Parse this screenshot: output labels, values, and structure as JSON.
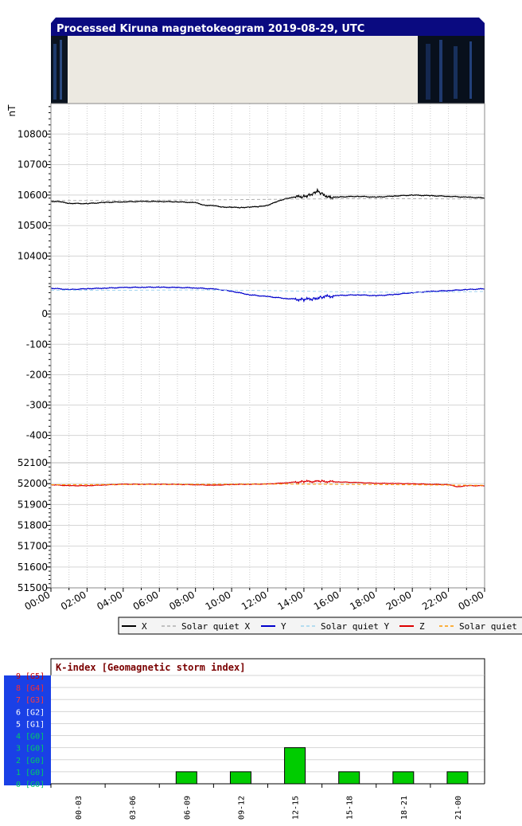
{
  "title": "Processed Kiruna magnetokeogram 2019-08-29, UTC",
  "colors": {
    "title_bg": "#0a0a80",
    "X": "#000000",
    "Y": "#0000cc",
    "Z": "#dd0000",
    "solar_quiet_X": "#b0b0b0",
    "solar_quiet_Y": "#9fd3ef",
    "solar_quiet_Z": "#ff9900",
    "k_bar": "#00cc00"
  },
  "chart_data": [
    {
      "type": "line",
      "name": "X panel",
      "ylabel": "nT",
      "x_ticks": [
        "00:00",
        "02:00",
        "04:00",
        "06:00",
        "08:00",
        "10:00",
        "12:00",
        "14:00",
        "16:00",
        "18:00",
        "20:00",
        "22:00",
        "00:00"
      ],
      "xlim_hours": [
        0,
        24
      ],
      "y_ticks": [
        "10800",
        "10700",
        "10600",
        "10500",
        "10400"
      ],
      "ylim": [
        10310,
        10900
      ],
      "series": [
        {
          "name": "X",
          "x_hours": [
            0,
            0.5,
            1,
            2,
            3,
            4,
            5,
            6,
            7,
            8,
            8.5,
            9,
            9.5,
            10,
            10.5,
            11,
            11.5,
            12,
            12.5,
            13,
            13.5,
            14,
            14.25,
            14.5,
            14.75,
            15,
            15.5,
            16,
            17,
            18,
            19,
            20,
            21,
            22,
            23,
            24
          ],
          "values": [
            10580,
            10578,
            10573,
            10572,
            10576,
            10578,
            10579,
            10579,
            10578,
            10575,
            10567,
            10565,
            10561,
            10560,
            10559,
            10561,
            10562,
            10567,
            10578,
            10589,
            10593,
            10596,
            10600,
            10606,
            10614,
            10604,
            10591,
            10594,
            10596,
            10593,
            10597,
            10600,
            10598,
            10596,
            10593,
            10591
          ]
        },
        {
          "name": "Solar quiet X",
          "x_hours": [
            0,
            4,
            8,
            12,
            16,
            20,
            24
          ],
          "values": [
            10582,
            10582,
            10584,
            10586,
            10588,
            10588,
            10587
          ]
        }
      ]
    },
    {
      "type": "line",
      "name": "Y panel",
      "y_ticks": [
        "0",
        "-100",
        "-200",
        "-300",
        "-400"
      ],
      "ylim": [
        -490,
        100
      ],
      "series": [
        {
          "name": "Y",
          "x_hours": [
            0,
            1,
            2,
            3,
            4,
            5,
            6,
            7,
            8,
            9,
            10,
            11,
            12,
            13,
            14,
            14.5,
            15,
            16,
            17,
            18,
            19,
            20,
            21,
            22,
            23,
            24
          ],
          "values": [
            85,
            80,
            83,
            85,
            87,
            88,
            88,
            87,
            86,
            82,
            75,
            63,
            57,
            51,
            47,
            50,
            56,
            61,
            63,
            60,
            64,
            70,
            74,
            77,
            80,
            83
          ]
        },
        {
          "name": "Solar quiet Y",
          "x_hours": [
            0,
            4,
            8,
            12,
            16,
            20,
            24
          ],
          "values": [
            78,
            78,
            79,
            77,
            73,
            71,
            74
          ]
        }
      ]
    },
    {
      "type": "line",
      "name": "Z panel",
      "y_ticks": [
        "52100",
        "52000",
        "51900",
        "51800",
        "51700",
        "51600",
        "51500"
      ],
      "ylim": [
        51500,
        52100
      ],
      "series": [
        {
          "name": "Z",
          "x_hours": [
            0,
            1,
            2,
            3,
            4,
            5,
            6,
            7,
            8,
            9,
            10,
            11,
            12,
            13,
            14,
            15,
            16,
            17,
            18,
            19,
            20,
            21,
            22,
            22.5,
            23,
            24
          ],
          "values": [
            51995,
            51990,
            51990,
            51994,
            51997,
            51997,
            51997,
            51996,
            51995,
            51992,
            51996,
            51997,
            51998,
            52004,
            52010,
            52011,
            52008,
            52005,
            52002,
            52001,
            51999,
            51997,
            51995,
            51985,
            51990,
            51990
          ]
        },
        {
          "name": "Solar quiet Z",
          "x_hours": [
            0,
            4,
            8,
            12,
            16,
            20,
            24
          ],
          "values": [
            51995,
            51996,
            51997,
            51998,
            51997,
            51994,
            51992
          ]
        }
      ]
    },
    {
      "type": "bar",
      "name": "K-index",
      "title": "K-index [Geomagnetic storm index]",
      "categories": [
        "00-03",
        "03-06",
        "06-09",
        "09-12",
        "12-15",
        "15-18",
        "18-21",
        "21-00"
      ],
      "values": [
        0,
        0,
        1,
        1,
        3,
        1,
        1,
        1
      ],
      "ylim": [
        0,
        9
      ]
    }
  ],
  "legend": [
    "X",
    "Solar quiet X",
    "Y",
    "Solar quiet Y",
    "Z",
    "Solar quiet Z"
  ],
  "k_levels": [
    {
      "label": "9 [G5]",
      "color": "#cc0000"
    },
    {
      "label": "8 [G4]",
      "color": "#ff2a2a"
    },
    {
      "label": "7 [G3]",
      "color": "#ff3b3b"
    },
    {
      "label": "6 [G2]",
      "color": "#ffffff"
    },
    {
      "label": "5 [G1]",
      "color": "#ffffff"
    },
    {
      "label": "4 [G0]",
      "color": "#00cc66"
    },
    {
      "label": "3 [G0]",
      "color": "#00cc66"
    },
    {
      "label": "2 [G0]",
      "color": "#00cc66"
    },
    {
      "label": "1 [G0]",
      "color": "#00cc66"
    },
    {
      "label": "0 [G0]",
      "color": "#00cc66"
    }
  ]
}
